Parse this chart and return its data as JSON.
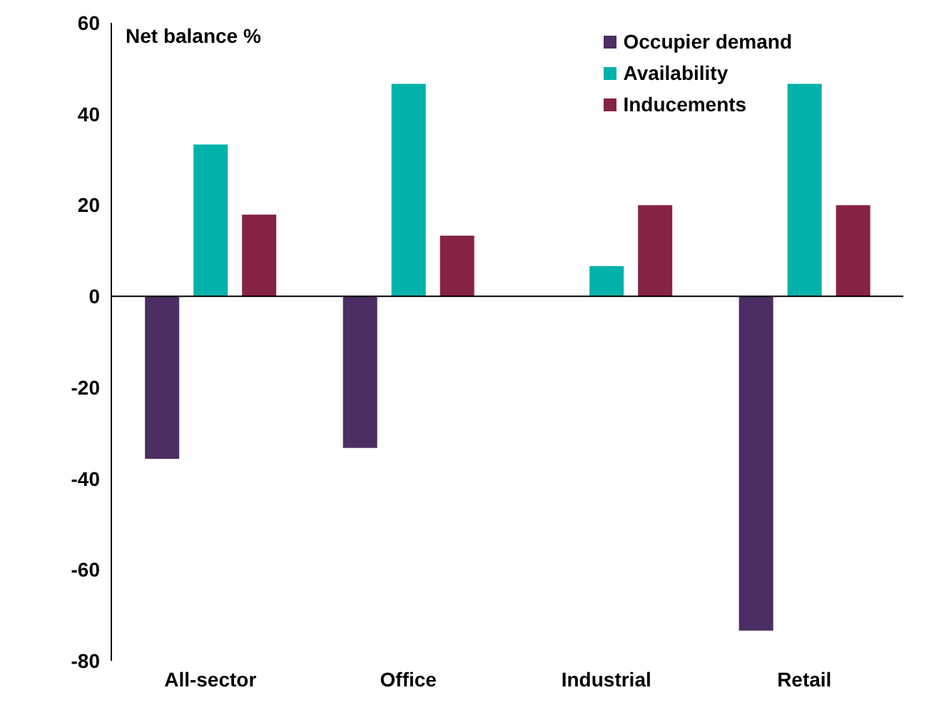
{
  "chart_data": {
    "type": "bar",
    "ylabel": "Net balance %",
    "categories": [
      "All-sector",
      "Office",
      "Industrial",
      "Retail"
    ],
    "series": [
      {
        "name": "Occupier demand",
        "color": "#4b2e63",
        "values": [
          -35.7,
          -33.3,
          0,
          -73.4
        ]
      },
      {
        "name": "Availability",
        "color": "#00b2a9",
        "values": [
          33.3,
          46.6,
          6.6,
          46.6
        ]
      },
      {
        "name": "Inducements",
        "color": "#862242",
        "values": [
          17.9,
          13.3,
          20,
          20
        ]
      }
    ],
    "ylim": [
      -80,
      60
    ],
    "yticks": [
      -80,
      -60,
      -40,
      -20,
      0,
      20,
      40,
      60
    ],
    "legend": "top right"
  }
}
